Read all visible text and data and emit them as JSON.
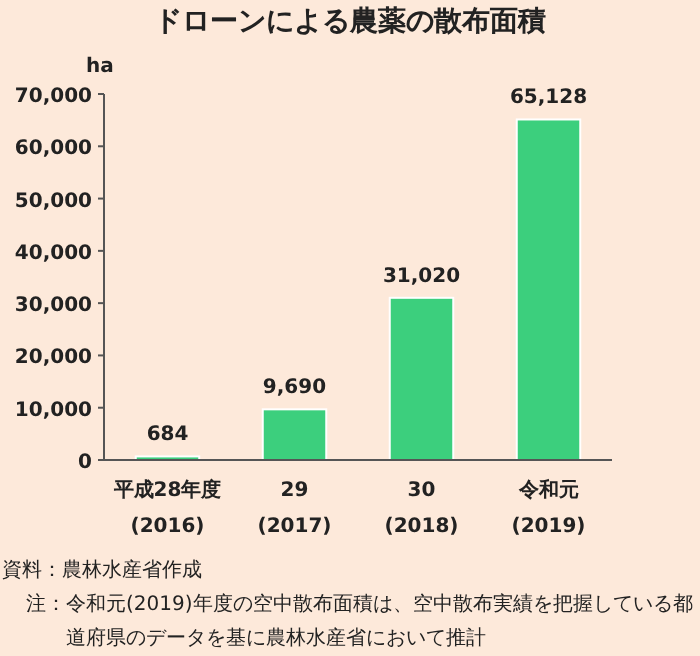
{
  "chart_data": {
    "type": "bar",
    "title": "ドローンによる農薬の散布面積",
    "ylabel": "ha",
    "categories": [
      "平成28年度\n(2016)",
      "29\n(2017)",
      "30\n(2018)",
      "令和元\n(2019)"
    ],
    "values": [
      684,
      9690,
      31020,
      65128
    ],
    "color": "#3ccf7d",
    "ylim": [
      0,
      70000
    ],
    "yticks": [
      {
        "value": 0,
        "label": "0"
      },
      {
        "value": 10000,
        "label": "10,000"
      },
      {
        "value": 20000,
        "label": "20,000"
      },
      {
        "value": 30000,
        "label": "30,000"
      },
      {
        "value": 40000,
        "label": "40,000"
      },
      {
        "value": 50000,
        "label": "50,000"
      },
      {
        "value": 60000,
        "label": "60,000"
      },
      {
        "value": 70000,
        "label": "70,000"
      }
    ],
    "value_labels": [
      "684",
      "9,690",
      "31,020",
      "65,128"
    ],
    "grid": false,
    "annotations": [
      "資料：農林水産省作成",
      "注：令和元(2019)年度の空中散布面積は、空中散布実績を把握している都道府県のデータを基に農林水産省において推計"
    ]
  }
}
